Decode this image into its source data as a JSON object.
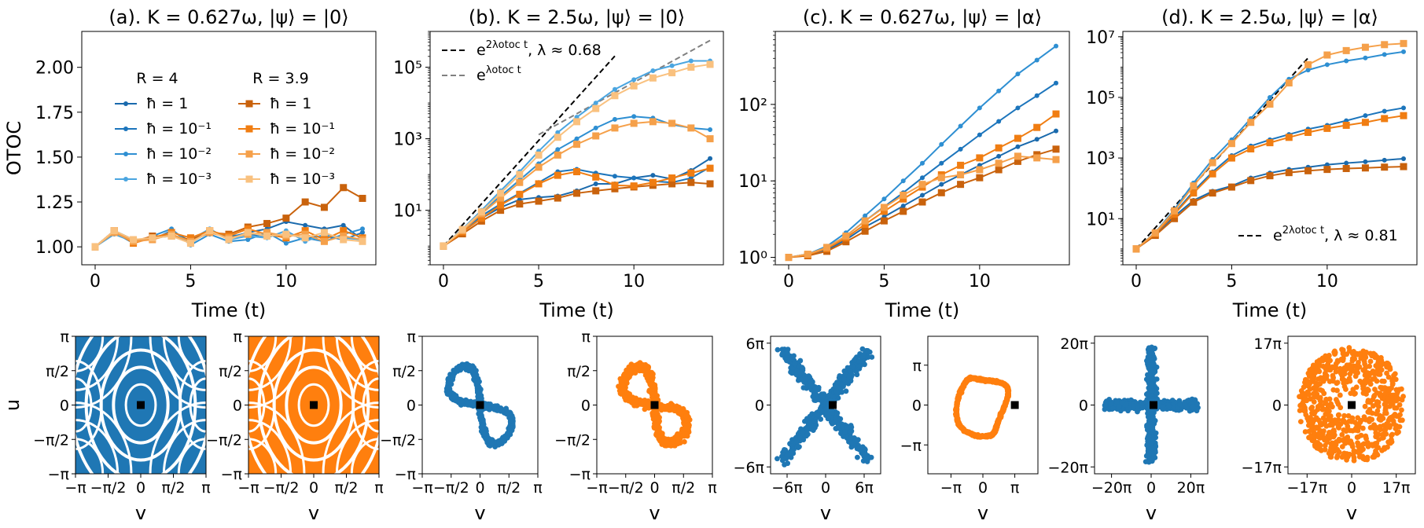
{
  "colors": {
    "blue": [
      "#1a6aad",
      "#1c75bc",
      "#2e8fd2",
      "#4aa5e0"
    ],
    "orange": [
      "#c9620c",
      "#f07d12",
      "#f5a04a",
      "#f9c17f"
    ],
    "scatter_blue": "#1f77b4",
    "scatter_orange": "#ff7f0e"
  },
  "chart_data": [
    {
      "type": "line",
      "title": "(a). K = 0.627ω, |ψ⟩ = |0⟩",
      "xlabel": "Time (t)",
      "ylabel": "OTOC",
      "yscale": "linear",
      "xlim": [
        -0.7,
        14.7
      ],
      "ylim": [
        0.9,
        2.2
      ],
      "xticks": [
        0,
        5,
        10
      ],
      "yticks": [
        1.0,
        1.25,
        1.5,
        1.75,
        2.0
      ],
      "ytick_labels": [
        "1.00",
        "1.25",
        "1.50",
        "1.75",
        "2.00"
      ],
      "legend_headers": [
        "R = 4",
        "R = 3.9"
      ],
      "x": [
        0,
        1,
        2,
        3,
        4,
        5,
        6,
        7,
        8,
        9,
        10,
        11,
        12,
        13,
        14
      ],
      "series": [
        {
          "name": "ħ = 1",
          "group": "blue",
          "shade": 0,
          "marker": "dot",
          "values": [
            1.0,
            1.08,
            1.03,
            1.05,
            1.07,
            1.02,
            1.09,
            1.05,
            1.08,
            1.1,
            1.14,
            1.12,
            1.1,
            1.12,
            1.04
          ]
        },
        {
          "name": "ħ = 10⁻¹",
          "group": "blue",
          "shade": 1,
          "marker": "dot",
          "values": [
            1.0,
            1.09,
            1.04,
            1.04,
            1.09,
            1.03,
            1.08,
            1.06,
            1.07,
            1.06,
            1.07,
            1.05,
            1.06,
            1.04,
            1.08
          ]
        },
        {
          "name": "ħ = 10⁻²",
          "group": "blue",
          "shade": 2,
          "marker": "dot",
          "values": [
            1.0,
            1.08,
            1.02,
            1.06,
            1.1,
            1.01,
            1.07,
            1.03,
            1.04,
            1.08,
            1.02,
            1.05,
            1.03,
            1.07,
            1.1
          ]
        },
        {
          "name": "ħ = 10⁻³",
          "group": "blue",
          "shade": 3,
          "marker": "dot",
          "values": [
            1.0,
            1.07,
            1.03,
            1.05,
            1.06,
            1.04,
            1.1,
            1.04,
            1.06,
            1.05,
            1.09,
            1.03,
            1.07,
            1.05,
            1.04
          ]
        },
        {
          "name": "ħ = 1",
          "group": "orange",
          "shade": 0,
          "marker": "square",
          "values": [
            1.0,
            1.09,
            1.03,
            1.06,
            1.06,
            1.04,
            1.08,
            1.07,
            1.11,
            1.13,
            1.16,
            1.25,
            1.22,
            1.33,
            1.27
          ]
        },
        {
          "name": "ħ = 10⁻¹",
          "group": "orange",
          "shade": 1,
          "marker": "square",
          "values": [
            1.0,
            1.09,
            1.02,
            1.05,
            1.08,
            1.05,
            1.09,
            1.06,
            1.1,
            1.07,
            1.05,
            1.09,
            1.04,
            1.09,
            1.05
          ]
        },
        {
          "name": "ħ = 10⁻²",
          "group": "orange",
          "shade": 2,
          "marker": "square",
          "values": [
            1.0,
            1.08,
            1.03,
            1.04,
            1.07,
            1.03,
            1.08,
            1.05,
            1.07,
            1.08,
            1.06,
            1.07,
            1.03,
            1.06,
            1.04
          ]
        },
        {
          "name": "ħ = 10⁻³",
          "group": "orange",
          "shade": 3,
          "marker": "square",
          "values": [
            1.0,
            1.09,
            1.04,
            1.05,
            1.06,
            1.02,
            1.09,
            1.04,
            1.08,
            1.06,
            1.07,
            1.05,
            1.08,
            1.04,
            1.03
          ]
        }
      ]
    },
    {
      "type": "line",
      "title": "(b). K = 2.5ω, |ψ⟩ = |0⟩",
      "xlabel": "Time (t)",
      "yscale": "log",
      "xlim": [
        -0.7,
        14.7
      ],
      "ylim": [
        0.3,
        1000000
      ],
      "xticks": [
        0,
        5,
        10
      ],
      "yticks": [
        10,
        1000,
        100000
      ],
      "ytick_labels": [
        "10¹",
        "10³",
        "10⁵"
      ],
      "legend": [
        {
          "label": "e^(2λotoc t), λ ≈ 0.68",
          "style": "black-dashed"
        },
        {
          "label": "e^(λotoc t)",
          "style": "gray-dashed"
        }
      ],
      "reference_lines": [
        {
          "style": "black-dashed",
          "x": [
            0,
            9
          ],
          "y": [
            1,
            205000
          ]
        },
        {
          "style": "gray-dashed",
          "x": [
            5,
            14
          ],
          "y": [
            1300,
            560000
          ]
        }
      ],
      "x": [
        0,
        1,
        2,
        3,
        4,
        5,
        6,
        7,
        8,
        9,
        10,
        11,
        12,
        13,
        14
      ],
      "series": [
        {
          "group": "blue",
          "shade": 0,
          "marker": "dot",
          "values": [
            1,
            2.5,
            6,
            12,
            20,
            23,
            25,
            35,
            55,
            55,
            80,
            95,
            75,
            130,
            280
          ]
        },
        {
          "group": "blue",
          "shade": 1,
          "marker": "dot",
          "values": [
            1,
            2.6,
            7,
            15,
            30,
            60,
            120,
            140,
            110,
            90,
            80,
            65,
            60,
            80,
            160
          ]
        },
        {
          "group": "blue",
          "shade": 2,
          "marker": "dot",
          "values": [
            1,
            2.8,
            9,
            25,
            70,
            200,
            500,
            1000,
            2000,
            3500,
            4200,
            3800,
            2500,
            2000,
            1800
          ]
        },
        {
          "group": "blue",
          "shade": 3,
          "marker": "dot",
          "values": [
            1,
            3,
            10,
            35,
            120,
            450,
            1500,
            4000,
            10000,
            24000,
            45000,
            80000,
            110000,
            150000,
            150000
          ]
        },
        {
          "group": "orange",
          "shade": 0,
          "marker": "square",
          "values": [
            1,
            2.2,
            5,
            10,
            15,
            18,
            22,
            30,
            35,
            40,
            45,
            50,
            55,
            60,
            55
          ]
        },
        {
          "group": "orange",
          "shade": 1,
          "marker": "square",
          "values": [
            1,
            2.5,
            6,
            14,
            28,
            55,
            95,
            120,
            85,
            50,
            48,
            60,
            80,
            110,
            150
          ]
        },
        {
          "group": "orange",
          "shade": 2,
          "marker": "square",
          "values": [
            1,
            2.7,
            8,
            22,
            60,
            160,
            350,
            700,
            1200,
            2000,
            2700,
            3000,
            2700,
            2000,
            1000
          ]
        },
        {
          "group": "orange",
          "shade": 3,
          "marker": "square",
          "values": [
            1,
            2.9,
            9,
            30,
            100,
            350,
            1100,
            3000,
            7000,
            16000,
            30000,
            50000,
            70000,
            100000,
            120000
          ]
        }
      ]
    },
    {
      "type": "line",
      "title": "(c). K = 0.627ω, |ψ⟩ = |α⟩",
      "xlabel": "Time (t)",
      "yscale": "log",
      "xlim": [
        -0.7,
        14.7
      ],
      "ylim": [
        0.8,
        900
      ],
      "xticks": [
        0,
        5,
        10
      ],
      "yticks": [
        1,
        10,
        100
      ],
      "ytick_labels": [
        "10⁰",
        "10¹",
        "10²"
      ],
      "x": [
        0,
        1,
        2,
        3,
        4,
        5,
        6,
        7,
        8,
        9,
        10,
        11,
        12,
        13,
        14
      ],
      "series": [
        {
          "group": "blue",
          "shade": 0,
          "marker": "dot",
          "values": [
            1,
            1.08,
            1.25,
            1.7,
            2.5,
            3.4,
            4.7,
            6.5,
            9,
            12,
            16,
            21,
            28,
            35,
            45
          ]
        },
        {
          "group": "blue",
          "shade": 1,
          "marker": "dot",
          "values": [
            1,
            1.1,
            1.35,
            1.9,
            3,
            4.6,
            7,
            11,
            17,
            26,
            40,
            60,
            90,
            130,
            190
          ]
        },
        {
          "group": "blue",
          "shade": 2,
          "marker": "dot",
          "values": [
            1,
            1.1,
            1.4,
            2.1,
            3.5,
            5.8,
            10,
            17,
            30,
            52,
            90,
            150,
            250,
            380,
            580
          ]
        },
        {
          "group": "orange",
          "shade": 0,
          "marker": "square",
          "values": [
            1,
            1.05,
            1.2,
            1.6,
            2.2,
            3,
            4,
            5.3,
            7,
            9,
            11,
            14,
            18,
            22,
            26
          ]
        },
        {
          "group": "orange",
          "shade": 1,
          "marker": "square",
          "values": [
            1,
            1.08,
            1.3,
            1.8,
            2.7,
            4,
            5.8,
            8.3,
            12,
            16,
            20,
            27,
            36,
            50,
            75
          ]
        },
        {
          "group": "orange",
          "shade": 2,
          "marker": "square",
          "values": [
            1,
            1.1,
            1.35,
            1.9,
            3,
            4.5,
            6.5,
            9,
            11,
            12,
            14,
            17,
            21,
            20,
            19
          ]
        }
      ]
    },
    {
      "type": "line",
      "title": "(d). K = 2.5ω, |ψ⟩ = |α⟩",
      "xlabel": "Time (t)",
      "yscale": "log",
      "xlim": [
        -0.7,
        14.7
      ],
      "ylim": [
        0.3,
        15000000
      ],
      "xticks": [
        0,
        5,
        10
      ],
      "yticks": [
        10,
        1000,
        100000,
        10000000
      ],
      "ytick_labels": [
        "10¹",
        "10³",
        "10⁵",
        "10⁷"
      ],
      "legend": [
        {
          "label": "e^(2λotoc t), λ ≈ 0.81",
          "style": "black-dashed"
        }
      ],
      "reference_lines": [
        {
          "style": "black-dashed",
          "x": [
            0,
            9
          ],
          "y": [
            1,
            2000000
          ]
        }
      ],
      "x": [
        0,
        1,
        2,
        3,
        4,
        5,
        6,
        7,
        8,
        9,
        10,
        11,
        12,
        13,
        14
      ],
      "series": [
        {
          "group": "blue",
          "shade": 0,
          "marker": "dot",
          "values": [
            1,
            3,
            12,
            40,
            80,
            120,
            220,
            320,
            420,
            500,
            600,
            680,
            750,
            850,
            950
          ]
        },
        {
          "group": "blue",
          "shade": 1,
          "marker": "dot",
          "values": [
            1,
            3.3,
            15,
            80,
            350,
            1200,
            2500,
            4000,
            6000,
            9000,
            12000,
            17000,
            25000,
            35000,
            45000
          ]
        },
        {
          "group": "blue",
          "shade": 2,
          "marker": "dot",
          "values": [
            1,
            3.5,
            20,
            150,
            900,
            4000,
            20000,
            100000,
            400000,
            800000,
            1200000,
            1600000,
            2000000,
            2600000,
            3200000
          ]
        },
        {
          "group": "orange",
          "shade": 0,
          "marker": "square",
          "values": [
            1,
            2.8,
            10,
            35,
            70,
            110,
            180,
            260,
            330,
            380,
            420,
            450,
            470,
            500,
            520
          ]
        },
        {
          "group": "orange",
          "shade": 1,
          "marker": "square",
          "values": [
            1,
            3.2,
            14,
            70,
            300,
            1000,
            2000,
            3200,
            4800,
            7000,
            9500,
            12000,
            15000,
            20000,
            25000
          ]
        },
        {
          "group": "orange",
          "shade": 2,
          "marker": "square",
          "values": [
            1,
            3.4,
            18,
            120,
            700,
            3000,
            15000,
            60000,
            300000,
            1200000,
            2500000,
            3500000,
            4500000,
            5500000,
            6000000
          ]
        }
      ]
    },
    {
      "type": "scatter",
      "panel": "phase-1",
      "color": "blue",
      "shape": "separatrix-grid",
      "xlabel": "v",
      "ylabel": "u",
      "xticks": [
        "−π",
        "−π/2",
        "0",
        "π/2",
        "π"
      ],
      "yticks": [
        "π",
        "π/2",
        "0",
        "−π/2",
        "−π"
      ]
    },
    {
      "type": "scatter",
      "panel": "phase-2",
      "color": "orange",
      "shape": "separatrix-grid",
      "xlabel": "v",
      "xticks": [
        "−π",
        "−π/2",
        "0",
        "π/2",
        "π"
      ],
      "yticks": [
        "π",
        "π/2",
        "0",
        "−π/2",
        "−π"
      ]
    },
    {
      "type": "scatter",
      "panel": "phase-3",
      "color": "blue",
      "shape": "figure-eight",
      "xlabel": "v",
      "xticks": [
        "−π",
        "−π/2",
        "0",
        "π/2",
        "π"
      ],
      "yticks": [
        "π",
        "π/2",
        "0",
        "−π/2",
        "−π"
      ]
    },
    {
      "type": "scatter",
      "panel": "phase-4",
      "color": "orange",
      "shape": "figure-eight-noisy",
      "xlabel": "v",
      "xticks": [
        "−π",
        "−π/2",
        "0",
        "π/2",
        "π"
      ],
      "yticks": [
        "π",
        "π/2",
        "0",
        "−π/2",
        "−π"
      ]
    },
    {
      "type": "scatter",
      "panel": "phase-5",
      "color": "blue",
      "shape": "x-cross",
      "xlabel": "v",
      "xticks": [
        "−6π",
        "0",
        "6π"
      ],
      "yticks": [
        "6π",
        "0",
        "−6π"
      ]
    },
    {
      "type": "scatter",
      "panel": "phase-6",
      "color": "orange",
      "shape": "closed-loop",
      "xlabel": "v",
      "xticks": [
        "−π",
        "0",
        "π"
      ],
      "yticks": [
        "π",
        "0",
        "−π"
      ]
    },
    {
      "type": "scatter",
      "panel": "phase-7",
      "color": "blue",
      "shape": "plus-cross",
      "xlabel": "v",
      "xticks": [
        "−20π",
        "0",
        "20π"
      ],
      "yticks": [
        "20π",
        "0",
        "−20π"
      ]
    },
    {
      "type": "scatter",
      "panel": "phase-8",
      "color": "orange",
      "shape": "ring-cloud",
      "xlabel": "v",
      "xticks": [
        "−17π",
        "0",
        "17π"
      ],
      "yticks": [
        "17π",
        "0",
        "−17π"
      ]
    }
  ]
}
